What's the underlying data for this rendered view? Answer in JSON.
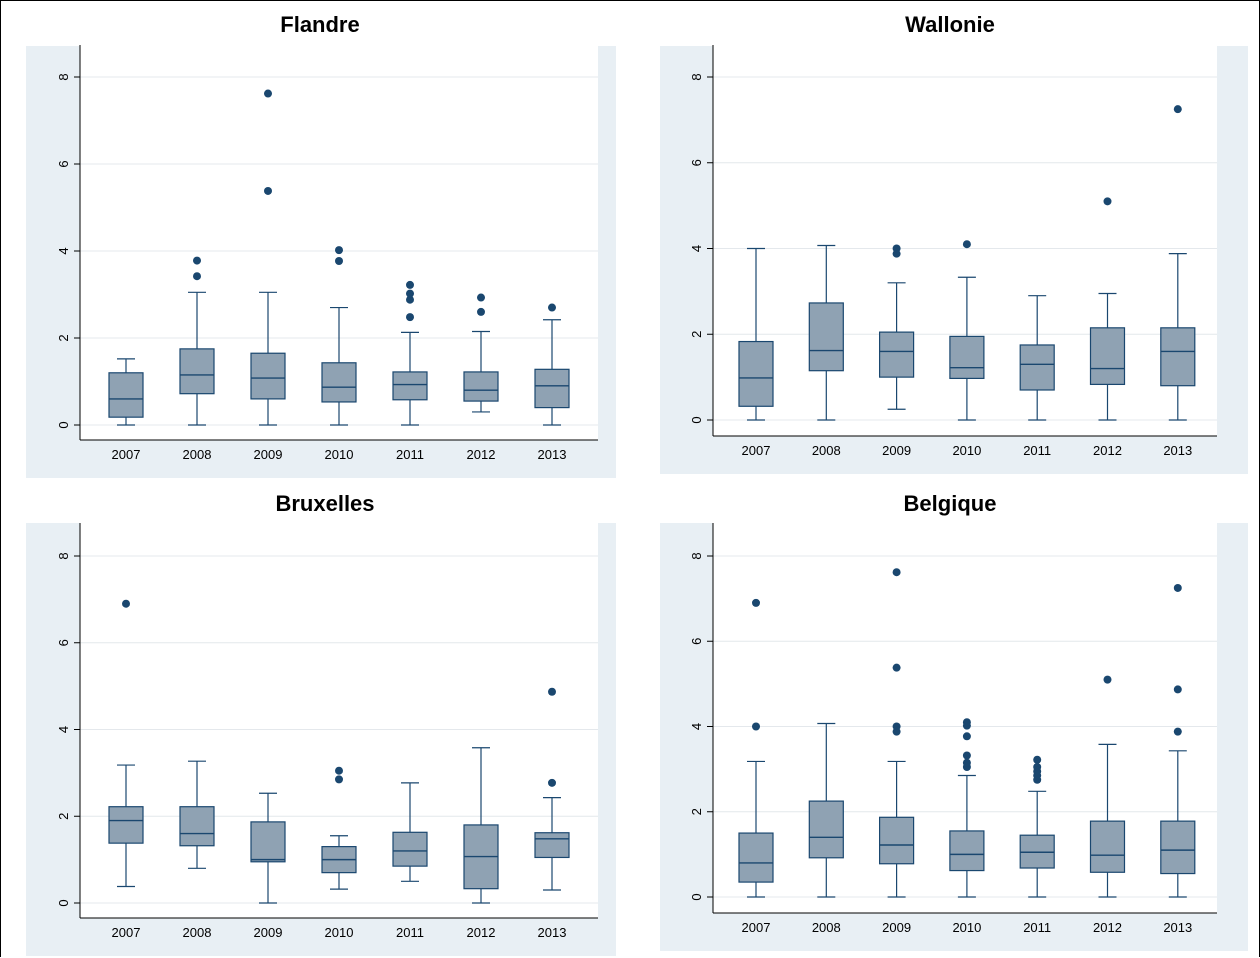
{
  "colors": {
    "panel_background": "#e8eff4",
    "plot_background": "#ffffff",
    "box_fill": "#8fa2b3",
    "box_stroke": "#1a476f",
    "outlier": "#1a476f",
    "grid": "#e4e8ec"
  },
  "chart_data": [
    {
      "type": "boxplot",
      "title": "Flandre",
      "categories": [
        "2007",
        "2008",
        "2009",
        "2010",
        "2011",
        "2012",
        "2013"
      ],
      "ylim": [
        0,
        8
      ],
      "yticks": [
        "0",
        "2",
        "4",
        "6",
        "8"
      ],
      "grid": true,
      "boxes": [
        {
          "low": 0.0,
          "q1": 0.18,
          "median": 0.6,
          "q3": 1.2,
          "high": 1.52,
          "outliers": []
        },
        {
          "low": 0.0,
          "q1": 0.72,
          "median": 1.15,
          "q3": 1.75,
          "high": 3.05,
          "outliers": [
            3.42,
            3.78
          ]
        },
        {
          "low": 0.0,
          "q1": 0.6,
          "median": 1.08,
          "q3": 1.65,
          "high": 3.05,
          "outliers": [
            5.38,
            7.62
          ]
        },
        {
          "low": 0.0,
          "q1": 0.53,
          "median": 0.87,
          "q3": 1.43,
          "high": 2.7,
          "outliers": [
            3.77,
            4.02
          ]
        },
        {
          "low": 0.0,
          "q1": 0.58,
          "median": 0.93,
          "q3": 1.22,
          "high": 2.13,
          "outliers": [
            2.48,
            2.88,
            3.02,
            3.22
          ]
        },
        {
          "low": 0.3,
          "q1": 0.55,
          "median": 0.8,
          "q3": 1.22,
          "high": 2.15,
          "outliers": [
            2.6,
            2.93
          ]
        },
        {
          "low": 0.0,
          "q1": 0.4,
          "median": 0.9,
          "q3": 1.28,
          "high": 2.42,
          "outliers": [
            2.7
          ]
        }
      ]
    },
    {
      "type": "boxplot",
      "title": "Wallonie",
      "categories": [
        "2007",
        "2008",
        "2009",
        "2010",
        "2011",
        "2012",
        "2013"
      ],
      "ylim": [
        0,
        8
      ],
      "yticks": [
        "0",
        "2",
        "4",
        "6",
        "8"
      ],
      "grid": true,
      "boxes": [
        {
          "low": 0.0,
          "q1": 0.32,
          "median": 0.98,
          "q3": 1.83,
          "high": 4.0,
          "outliers": []
        },
        {
          "low": 0.0,
          "q1": 1.15,
          "median": 1.62,
          "q3": 2.73,
          "high": 4.07,
          "outliers": []
        },
        {
          "low": 0.25,
          "q1": 1.0,
          "median": 1.6,
          "q3": 2.05,
          "high": 3.2,
          "outliers": [
            3.88,
            4.0
          ]
        },
        {
          "low": 0.0,
          "q1": 0.97,
          "median": 1.22,
          "q3": 1.95,
          "high": 3.33,
          "outliers": [
            4.1
          ]
        },
        {
          "low": 0.0,
          "q1": 0.7,
          "median": 1.3,
          "q3": 1.75,
          "high": 2.9,
          "outliers": []
        },
        {
          "low": 0.0,
          "q1": 0.83,
          "median": 1.2,
          "q3": 2.15,
          "high": 2.95,
          "outliers": [
            5.1
          ]
        },
        {
          "low": 0.0,
          "q1": 0.8,
          "median": 1.6,
          "q3": 2.15,
          "high": 3.88,
          "outliers": [
            7.25
          ]
        }
      ]
    },
    {
      "type": "boxplot",
      "title": "Bruxelles",
      "categories": [
        "2007",
        "2008",
        "2009",
        "2010",
        "2011",
        "2012",
        "2013"
      ],
      "ylim": [
        0,
        8
      ],
      "yticks": [
        "0",
        "2",
        "4",
        "6",
        "8"
      ],
      "grid": true,
      "boxes": [
        {
          "low": 0.38,
          "q1": 1.38,
          "median": 1.9,
          "q3": 2.22,
          "high": 3.18,
          "outliers": [
            6.9
          ]
        },
        {
          "low": 0.8,
          "q1": 1.32,
          "median": 1.6,
          "q3": 2.22,
          "high": 3.27,
          "outliers": []
        },
        {
          "low": 0.0,
          "q1": 0.95,
          "median": 1.0,
          "q3": 1.87,
          "high": 2.53,
          "outliers": []
        },
        {
          "low": 0.32,
          "q1": 0.7,
          "median": 1.0,
          "q3": 1.3,
          "high": 1.55,
          "outliers": [
            2.85,
            3.05
          ]
        },
        {
          "low": 0.5,
          "q1": 0.85,
          "median": 1.2,
          "q3": 1.63,
          "high": 2.77,
          "outliers": []
        },
        {
          "low": 0.0,
          "q1": 0.33,
          "median": 1.07,
          "q3": 1.8,
          "high": 3.58,
          "outliers": []
        },
        {
          "low": 0.3,
          "q1": 1.05,
          "median": 1.48,
          "q3": 1.62,
          "high": 2.43,
          "outliers": [
            2.77,
            4.87
          ]
        }
      ]
    },
    {
      "type": "boxplot",
      "title": "Belgique",
      "categories": [
        "2007",
        "2008",
        "2009",
        "2010",
        "2011",
        "2012",
        "2013"
      ],
      "ylim": [
        0,
        8
      ],
      "yticks": [
        "0",
        "2",
        "4",
        "6",
        "8"
      ],
      "grid": true,
      "boxes": [
        {
          "low": 0.0,
          "q1": 0.35,
          "median": 0.8,
          "q3": 1.5,
          "high": 3.18,
          "outliers": [
            4.0,
            6.9
          ]
        },
        {
          "low": 0.0,
          "q1": 0.92,
          "median": 1.4,
          "q3": 2.25,
          "high": 4.07,
          "outliers": []
        },
        {
          "low": 0.0,
          "q1": 0.78,
          "median": 1.22,
          "q3": 1.87,
          "high": 3.18,
          "outliers": [
            3.88,
            4.0,
            5.38,
            7.62
          ]
        },
        {
          "low": 0.0,
          "q1": 0.62,
          "median": 1.0,
          "q3": 1.55,
          "high": 2.85,
          "outliers": [
            3.05,
            3.15,
            3.32,
            3.77,
            4.02,
            4.1
          ]
        },
        {
          "low": 0.0,
          "q1": 0.68,
          "median": 1.05,
          "q3": 1.45,
          "high": 2.48,
          "outliers": [
            2.75,
            2.85,
            2.95,
            3.05,
            3.22
          ]
        },
        {
          "low": 0.0,
          "q1": 0.58,
          "median": 0.98,
          "q3": 1.78,
          "high": 3.58,
          "outliers": [
            5.1
          ]
        },
        {
          "low": 0.0,
          "q1": 0.55,
          "median": 1.1,
          "q3": 1.78,
          "high": 3.43,
          "outliers": [
            3.88,
            4.87,
            7.25
          ]
        }
      ]
    }
  ]
}
